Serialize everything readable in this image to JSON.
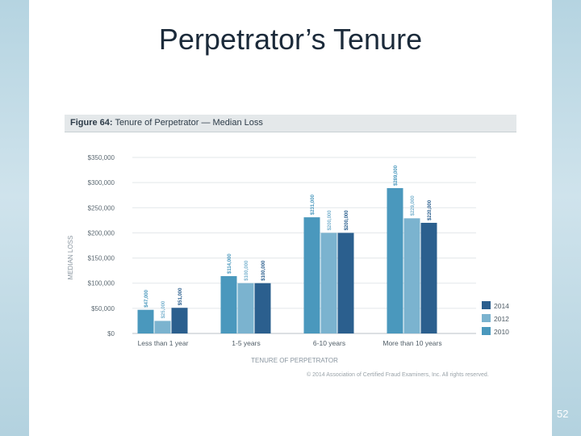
{
  "slide": {
    "title": "Perpetrator’s Tenure",
    "page_number": "52",
    "copyright": "© 2014 Association of Certified Fraud Examiners, Inc. All rights reserved."
  },
  "figure": {
    "label": "Figure 64:",
    "caption": "Tenure of Perpetrator — Median Loss"
  },
  "chart_data": {
    "type": "bar",
    "title": "Figure 64: Tenure of Perpetrator — Median Loss",
    "xlabel": "TENURE OF PERPETRATOR",
    "ylabel": "MEDIAN LOSS",
    "categories": [
      "Less than 1 year",
      "1-5 years",
      "6-10 years",
      "More than 10 years"
    ],
    "ylim": [
      0,
      350000
    ],
    "yticks": [
      0,
      50000,
      100000,
      150000,
      200000,
      250000,
      300000,
      350000
    ],
    "ytick_labels": [
      "$0",
      "$50,000",
      "$100,000",
      "$150,000",
      "$200,000",
      "$250,000",
      "$300,000",
      "$350,000"
    ],
    "grid": true,
    "legend_position": "bottom-right",
    "series": [
      {
        "name": "2010",
        "color": "#4a98bd",
        "values": [
          47000,
          114000,
          231000,
          289000
        ],
        "labels": [
          "$47,000",
          "$114,000",
          "$231,000",
          "$289,000"
        ]
      },
      {
        "name": "2012",
        "color": "#7bb3cf",
        "values": [
          25000,
          100000,
          200000,
          229000
        ],
        "labels": [
          "$25,000",
          "$100,000",
          "$200,000",
          "$229,000"
        ]
      },
      {
        "name": "2014",
        "color": "#2b5f8e",
        "values": [
          51000,
          100000,
          200000,
          220000
        ],
        "labels": [
          "$51,000",
          "$100,000",
          "$200,000",
          "$220,000"
        ]
      }
    ],
    "legend_order": [
      "2014",
      "2012",
      "2010"
    ]
  }
}
